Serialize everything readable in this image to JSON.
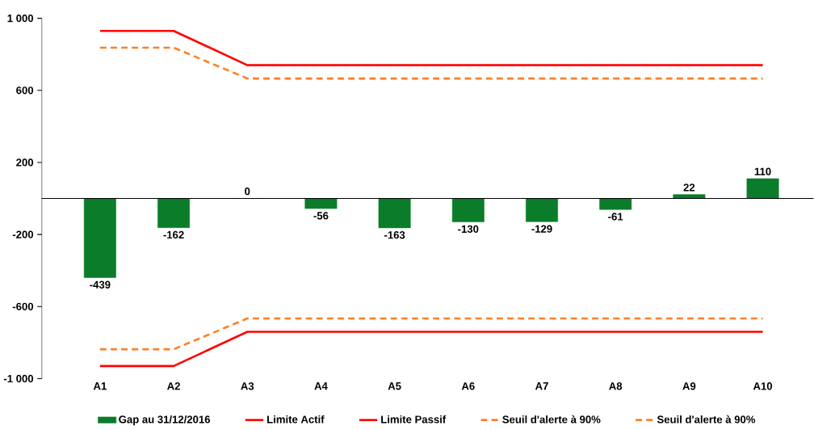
{
  "chart_data": {
    "type": "bar",
    "categories": [
      "A1",
      "A2",
      "A3",
      "A4",
      "A5",
      "A6",
      "A7",
      "A8",
      "A9",
      "A10"
    ],
    "series": [
      {
        "name": "Gap au 31/12/2016",
        "color": "#0b7d2a",
        "values": [
          -439,
          -162,
          0,
          -56,
          -163,
          -130,
          -129,
          -61,
          22,
          110
        ],
        "value_labels": [
          "-439",
          "-162",
          "0",
          "-56",
          "-163",
          "-130",
          "-129",
          "-61",
          "22",
          "110"
        ]
      },
      {
        "name": "Limite Actif",
        "type": "line",
        "color": "#ff0000",
        "line_style": "solid",
        "values": [
          930,
          930,
          740,
          740,
          740,
          740,
          740,
          740,
          740,
          740
        ]
      },
      {
        "name": "Limite Passif",
        "type": "line",
        "color": "#ff0000",
        "line_style": "solid",
        "values": [
          -930,
          -930,
          -740,
          -740,
          -740,
          -740,
          -740,
          -740,
          -740,
          -740
        ]
      },
      {
        "name": "Seuil d'alerte à 90%",
        "type": "line",
        "color": "#ff7f27",
        "line_style": "dashed",
        "values": [
          837,
          837,
          666,
          666,
          666,
          666,
          666,
          666,
          666,
          666
        ]
      },
      {
        "name": "Seuil d'alerte à 90%",
        "type": "line",
        "color": "#ff7f27",
        "line_style": "dashed",
        "values": [
          -837,
          -837,
          -666,
          -666,
          -666,
          -666,
          -666,
          -666,
          -666,
          -666
        ]
      }
    ],
    "ylim": [
      -1000,
      1000
    ],
    "yticks": [
      {
        "value": 1000,
        "label": "1 000"
      },
      600,
      200,
      -200,
      -600,
      {
        "value": -1000,
        "label": "-1 000"
      }
    ],
    "grid": false,
    "legend": "bottom",
    "marker": "none"
  }
}
